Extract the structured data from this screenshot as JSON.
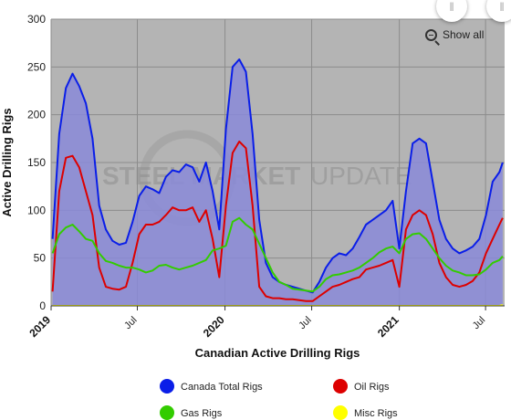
{
  "chart_data": {
    "type": "area",
    "title": "",
    "xlabel": "Canadian Active Drilling Rigs",
    "ylabel": "Active Drilling Rigs",
    "ylim": [
      0,
      300
    ],
    "yticks": [
      0,
      50,
      100,
      150,
      200,
      250,
      300
    ],
    "xlim": [
      "2019-01-01",
      "2021-08-10"
    ],
    "xticks": [
      {
        "date": "2019-01-01",
        "label": "2019",
        "major": true
      },
      {
        "date": "2019-07-01",
        "label": "Jul",
        "major": false
      },
      {
        "date": "2020-01-01",
        "label": "2020",
        "major": true
      },
      {
        "date": "2020-07-01",
        "label": "Jul",
        "major": false
      },
      {
        "date": "2021-01-01",
        "label": "2021",
        "major": true
      },
      {
        "date": "2021-07-01",
        "label": "Jul",
        "major": false
      }
    ],
    "grid": true,
    "legend_position": "bottom",
    "x": [
      "2019-01-04",
      "2019-01-18",
      "2019-02-01",
      "2019-02-15",
      "2019-03-01",
      "2019-03-15",
      "2019-03-29",
      "2019-04-12",
      "2019-04-26",
      "2019-05-10",
      "2019-05-24",
      "2019-06-07",
      "2019-06-21",
      "2019-07-05",
      "2019-07-19",
      "2019-08-02",
      "2019-08-16",
      "2019-08-30",
      "2019-09-13",
      "2019-09-27",
      "2019-10-11",
      "2019-10-25",
      "2019-11-08",
      "2019-11-22",
      "2019-12-06",
      "2019-12-20",
      "2020-01-03",
      "2020-01-17",
      "2020-01-31",
      "2020-02-14",
      "2020-02-28",
      "2020-03-13",
      "2020-03-27",
      "2020-04-10",
      "2020-04-24",
      "2020-05-08",
      "2020-05-22",
      "2020-06-05",
      "2020-06-19",
      "2020-07-03",
      "2020-07-17",
      "2020-07-31",
      "2020-08-14",
      "2020-08-28",
      "2020-09-11",
      "2020-09-25",
      "2020-10-09",
      "2020-10-23",
      "2020-11-06",
      "2020-11-20",
      "2020-12-04",
      "2020-12-18",
      "2021-01-01",
      "2021-01-15",
      "2021-01-29",
      "2021-02-12",
      "2021-02-26",
      "2021-03-12",
      "2021-03-26",
      "2021-04-09",
      "2021-04-23",
      "2021-05-07",
      "2021-05-21",
      "2021-06-04",
      "2021-06-18",
      "2021-07-02",
      "2021-07-16",
      "2021-07-30",
      "2021-08-06"
    ],
    "series": [
      {
        "name": "Canada Total Rigs",
        "color": "#0a1ee8",
        "fill": true,
        "values": [
          70,
          180,
          228,
          243,
          230,
          212,
          175,
          105,
          80,
          68,
          64,
          66,
          88,
          115,
          125,
          122,
          118,
          135,
          142,
          140,
          148,
          145,
          130,
          150,
          120,
          80,
          185,
          250,
          258,
          245,
          180,
          90,
          45,
          30,
          25,
          22,
          20,
          18,
          16,
          14,
          25,
          40,
          50,
          55,
          53,
          60,
          72,
          85,
          90,
          95,
          100,
          110,
          60,
          120,
          170,
          175,
          170,
          130,
          90,
          70,
          60,
          55,
          58,
          62,
          70,
          95,
          130,
          140,
          150
        ]
      },
      {
        "name": "Oil Rigs",
        "color": "#dd0000",
        "fill": false,
        "values": [
          15,
          120,
          155,
          157,
          145,
          120,
          95,
          40,
          20,
          18,
          17,
          20,
          45,
          75,
          85,
          85,
          88,
          95,
          103,
          100,
          100,
          103,
          88,
          100,
          70,
          30,
          105,
          160,
          172,
          165,
          105,
          20,
          10,
          8,
          8,
          7,
          7,
          6,
          5,
          5,
          10,
          15,
          20,
          22,
          25,
          28,
          30,
          38,
          40,
          42,
          45,
          48,
          20,
          80,
          95,
          100,
          95,
          75,
          45,
          30,
          22,
          20,
          22,
          26,
          35,
          55,
          70,
          85,
          92
        ]
      },
      {
        "name": "Gas Rigs",
        "color": "#33cc00",
        "fill": false,
        "values": [
          55,
          75,
          82,
          85,
          78,
          70,
          68,
          55,
          47,
          45,
          42,
          40,
          40,
          38,
          35,
          37,
          42,
          43,
          40,
          38,
          40,
          42,
          45,
          48,
          58,
          60,
          63,
          88,
          92,
          85,
          80,
          65,
          50,
          35,
          25,
          22,
          18,
          17,
          16,
          15,
          20,
          28,
          32,
          33,
          35,
          37,
          40,
          45,
          50,
          56,
          60,
          62,
          55,
          70,
          75,
          76,
          70,
          60,
          50,
          42,
          37,
          35,
          32,
          32,
          33,
          38,
          45,
          48,
          52
        ]
      },
      {
        "name": "Misc Rigs",
        "color": "#ffff00",
        "fill": false,
        "values": [
          0,
          0,
          0,
          0,
          0,
          0,
          0,
          0,
          0,
          0,
          0,
          0,
          0,
          0,
          0,
          0,
          0,
          0,
          0,
          0,
          0,
          0,
          0,
          0,
          0,
          0,
          0,
          0,
          0,
          0,
          0,
          0,
          0,
          0,
          0,
          0,
          0,
          0,
          0,
          0,
          0,
          0,
          0,
          0,
          0,
          0,
          0,
          0,
          0,
          0,
          0,
          0,
          0,
          0,
          0,
          0,
          0,
          0,
          0,
          0,
          0,
          0,
          0,
          0,
          0,
          0,
          0,
          0,
          1
        ]
      }
    ]
  },
  "controls": {
    "show_all_label": "Show all",
    "handle_icon": "‖"
  },
  "watermark": {
    "bold": "STEEL MARKET",
    "light": "UPDATE"
  }
}
